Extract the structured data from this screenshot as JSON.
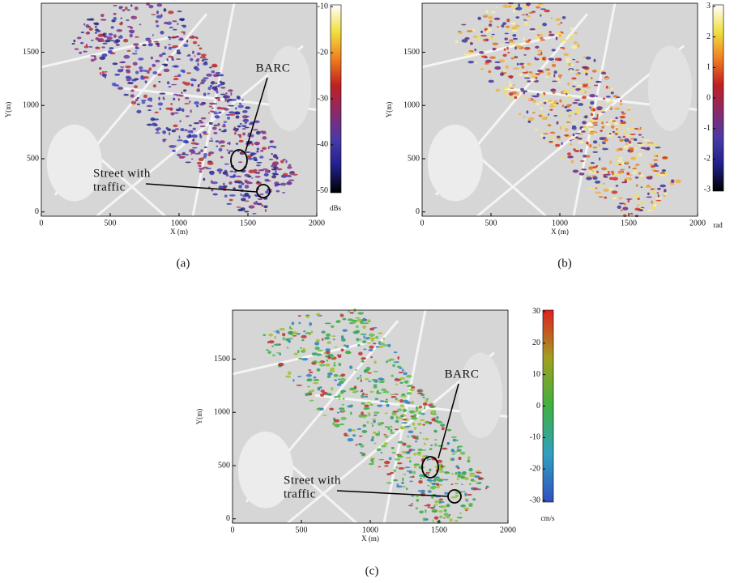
{
  "panels": [
    {
      "xlabel": "X (m)",
      "ylabel": "Y(m)",
      "xlim": [
        0,
        2000
      ],
      "ylim": [
        -40,
        1960
      ],
      "xticks": [
        0,
        500,
        1000,
        1500,
        2000
      ],
      "yticks": [
        0,
        500,
        1000,
        1500
      ],
      "colorbar": {
        "lim": [
          -50.4,
          -9.6
        ],
        "ticks": [
          -10,
          -20,
          -30,
          -40,
          -50
        ],
        "unit": "dBs",
        "colors": [
          "#000000",
          "#20208a",
          "#4a3aa8",
          "#8a2a6a",
          "#c02020",
          "#f08020",
          "#f0e040",
          "#ffffff"
        ]
      },
      "annotations": [
        {
          "lines": [
            "BARC"
          ]
        },
        {
          "lines": [
            "Street with",
            "traffic"
          ]
        }
      ],
      "caption": "(a)"
    },
    {
      "xlabel": "X (m)",
      "ylabel": "Y(m)",
      "xlim": [
        0,
        2000
      ],
      "ylim": [
        -40,
        1960
      ],
      "xticks": [
        0,
        500,
        1000,
        1500,
        2000
      ],
      "yticks": [
        0,
        500,
        1000,
        1500
      ],
      "colorbar": {
        "lim": [
          -3.05,
          3.05
        ],
        "ticks": [
          3,
          2,
          1,
          0,
          -1,
          -2,
          -3
        ],
        "unit": "rad",
        "colors": [
          "#000000",
          "#20208a",
          "#4a3aa8",
          "#8a2a6a",
          "#c02020",
          "#f08020",
          "#f0e040",
          "#ffffff"
        ]
      },
      "annotations": [],
      "caption": "(b)"
    },
    {
      "xlabel": "X (m)",
      "ylabel": "Y(m)",
      "xlim": [
        0,
        2000
      ],
      "ylim": [
        -40,
        1960
      ],
      "xticks": [
        0,
        500,
        1000,
        1500,
        2000
      ],
      "yticks": [
        0,
        500,
        1000,
        1500
      ],
      "colorbar": {
        "lim": [
          -30.5,
          30.5
        ],
        "ticks": [
          30,
          20,
          10,
          0,
          -10,
          -20,
          -30
        ],
        "unit": "cm/s",
        "colors": [
          "#3050c0",
          "#30a0c0",
          "#40b040",
          "#a0a020",
          "#e02020"
        ]
      },
      "annotations": [
        {
          "lines": [
            "BARC"
          ]
        },
        {
          "lines": [
            "Street with",
            "traffic"
          ]
        }
      ],
      "caption": "(c)"
    }
  ]
}
